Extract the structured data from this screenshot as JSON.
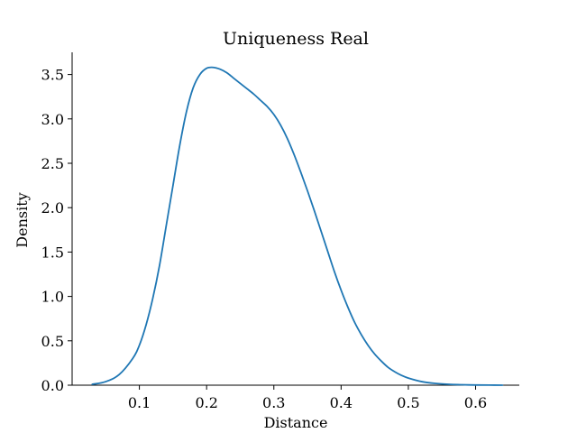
{
  "chart_data": {
    "type": "line",
    "title": "Uniqueness Real",
    "xlabel": "Distance",
    "ylabel": "Density",
    "xlim": [
      0.0,
      0.665
    ],
    "ylim": [
      0.0,
      3.75
    ],
    "xticks": [
      0.1,
      0.2,
      0.3,
      0.4,
      0.5,
      0.6
    ],
    "xtick_labels": [
      "0.1",
      "0.2",
      "0.3",
      "0.4",
      "0.5",
      "0.6"
    ],
    "yticks": [
      0.0,
      0.5,
      1.0,
      1.5,
      2.0,
      2.5,
      3.0,
      3.5
    ],
    "ytick_labels": [
      "0.0",
      "0.5",
      "1.0",
      "1.5",
      "2.0",
      "2.5",
      "3.0",
      "3.5"
    ],
    "grid": false,
    "legend": "none",
    "series": [
      {
        "color": "#1f77b4",
        "x": [
          0.03,
          0.05,
          0.07,
          0.09,
          0.1,
          0.11,
          0.12,
          0.13,
          0.14,
          0.15,
          0.16,
          0.17,
          0.18,
          0.19,
          0.2,
          0.21,
          0.22,
          0.23,
          0.24,
          0.25,
          0.26,
          0.27,
          0.28,
          0.29,
          0.3,
          0.31,
          0.32,
          0.33,
          0.34,
          0.35,
          0.36,
          0.37,
          0.38,
          0.39,
          0.4,
          0.41,
          0.42,
          0.43,
          0.44,
          0.45,
          0.46,
          0.47,
          0.48,
          0.49,
          0.5,
          0.52,
          0.54,
          0.56,
          0.58,
          0.6,
          0.62,
          0.64
        ],
        "y": [
          0.01,
          0.04,
          0.12,
          0.3,
          0.45,
          0.68,
          0.98,
          1.35,
          1.8,
          2.25,
          2.7,
          3.08,
          3.35,
          3.5,
          3.57,
          3.58,
          3.56,
          3.52,
          3.46,
          3.4,
          3.34,
          3.28,
          3.21,
          3.14,
          3.05,
          2.93,
          2.78,
          2.6,
          2.4,
          2.19,
          1.97,
          1.74,
          1.51,
          1.28,
          1.07,
          0.88,
          0.71,
          0.57,
          0.45,
          0.35,
          0.27,
          0.2,
          0.15,
          0.11,
          0.08,
          0.04,
          0.02,
          0.01,
          0.005,
          0.002,
          0.001,
          0.0
        ]
      }
    ]
  }
}
